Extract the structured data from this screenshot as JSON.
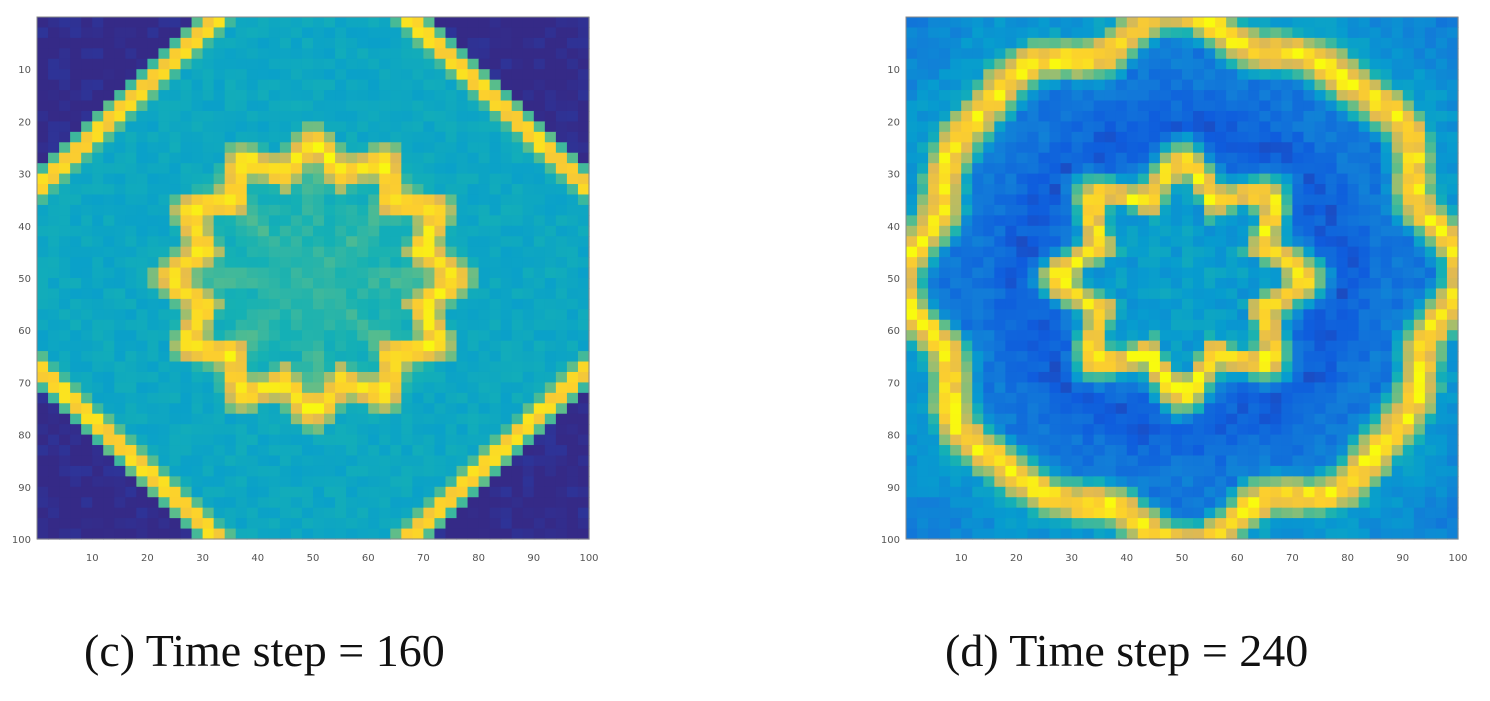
{
  "colors": {
    "colormap": "parula",
    "background": "#ffffff",
    "tick_text": "#555555",
    "axis": "#888888"
  },
  "chart_data": [
    {
      "type": "heatmap",
      "caption": "(c) Time step = 160",
      "xlim": [
        0,
        100
      ],
      "ylim": [
        0,
        100
      ],
      "y_reversed": true,
      "x_ticks": [
        "10",
        "20",
        "30",
        "40",
        "50",
        "60",
        "70",
        "80",
        "90",
        "100"
      ],
      "y_ticks": [
        "10",
        "20",
        "30",
        "40",
        "50",
        "60",
        "70",
        "80",
        "90",
        "100"
      ],
      "x_tick_values": [
        10,
        20,
        30,
        40,
        50,
        60,
        70,
        80,
        90,
        100
      ],
      "y_tick_values": [
        10,
        20,
        30,
        40,
        50,
        60,
        70,
        80,
        90,
        100
      ],
      "field": {
        "center": [
          50,
          50
        ],
        "outer_ring_radius_L1": 67,
        "inner_ring_radius": 23,
        "inner_ring_lobes": 12,
        "corner_level": 0.0,
        "between_rings_level": 0.5,
        "center_level": 0.55,
        "noise": 0.03
      }
    },
    {
      "type": "heatmap",
      "caption": "(d) Time step = 240",
      "xlim": [
        0,
        100
      ],
      "ylim": [
        0,
        100
      ],
      "y_reversed": true,
      "x_ticks": [
        "10",
        "20",
        "30",
        "40",
        "50",
        "60",
        "70",
        "80",
        "90",
        "100"
      ],
      "y_ticks": [
        "10",
        "20",
        "30",
        "40",
        "50",
        "60",
        "70",
        "80",
        "90",
        "100"
      ],
      "x_tick_values": [
        10,
        20,
        30,
        40,
        50,
        60,
        70,
        80,
        90,
        100
      ],
      "y_tick_values": [
        10,
        20,
        30,
        40,
        50,
        60,
        70,
        80,
        90,
        100
      ],
      "field": {
        "center": [
          50,
          50
        ],
        "outer_ring_radius": 48,
        "inner_ring_radius": 19,
        "inner_ring_lobes": 8,
        "corner_level": 0.3,
        "between_rings_level": 0.28,
        "center_level": 0.42,
        "noise": 0.06
      }
    }
  ]
}
